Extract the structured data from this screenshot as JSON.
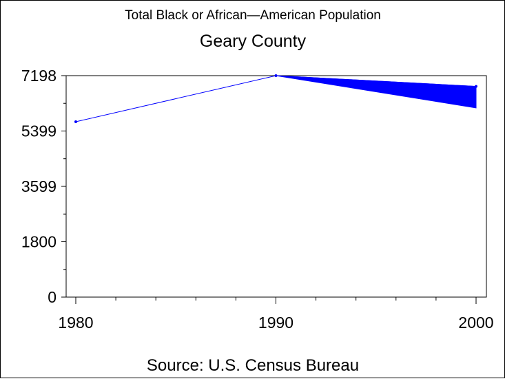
{
  "chart_data": {
    "type": "line",
    "title": "Total Black or African—American Population",
    "subtitle": "Geary County",
    "source": "Source: U.S. Census Bureau",
    "x": [
      "1980",
      "1990",
      "2000"
    ],
    "series": [
      {
        "values": [
          5700,
          7198,
          6850
        ],
        "color": "#0000ff"
      }
    ],
    "band": {
      "x": [
        "1990",
        "2000"
      ],
      "upper": [
        7198,
        6850
      ],
      "lower": [
        7198,
        6150
      ],
      "color": "#0000ff"
    },
    "ylim": [
      0,
      7198
    ],
    "yticks": [
      "0",
      "1800",
      "3599",
      "5399",
      "7198"
    ],
    "ytick_values": [
      0,
      1800,
      3599,
      5399,
      7198
    ],
    "grid": false,
    "legend": "none"
  }
}
